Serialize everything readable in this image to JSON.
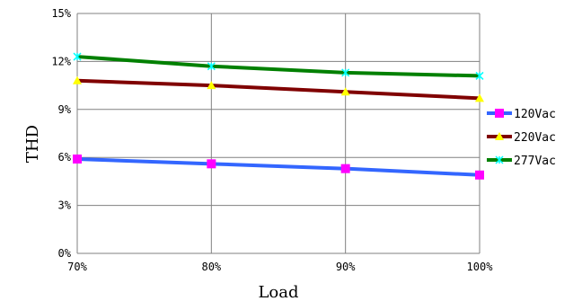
{
  "chart_data": {
    "type": "line",
    "xlabel": "Load",
    "ylabel": "THD",
    "x": [
      70,
      80,
      90,
      100
    ],
    "x_tick_labels": [
      "70%",
      "80%",
      "90%",
      "100%"
    ],
    "ylim": [
      0,
      15
    ],
    "y_ticks": [
      0,
      3,
      6,
      9,
      12,
      15
    ],
    "y_tick_labels": [
      "0%",
      "3%",
      "6%",
      "9%",
      "12%",
      "15%"
    ],
    "grid": true,
    "legend_position": "right",
    "series": [
      {
        "name": "120Vac",
        "values": [
          5.9,
          5.6,
          5.3,
          4.9
        ],
        "color": "#3366ff",
        "marker": "square",
        "marker_color": "#ff00ff"
      },
      {
        "name": "220Vac",
        "values": [
          10.8,
          10.5,
          10.1,
          9.7
        ],
        "color": "#800000",
        "marker": "triangle",
        "marker_color": "#ffff00"
      },
      {
        "name": "277Vac",
        "values": [
          12.3,
          11.7,
          11.3,
          11.1
        ],
        "color": "#008000",
        "marker": "star",
        "marker_color": "#00ffff"
      }
    ]
  }
}
